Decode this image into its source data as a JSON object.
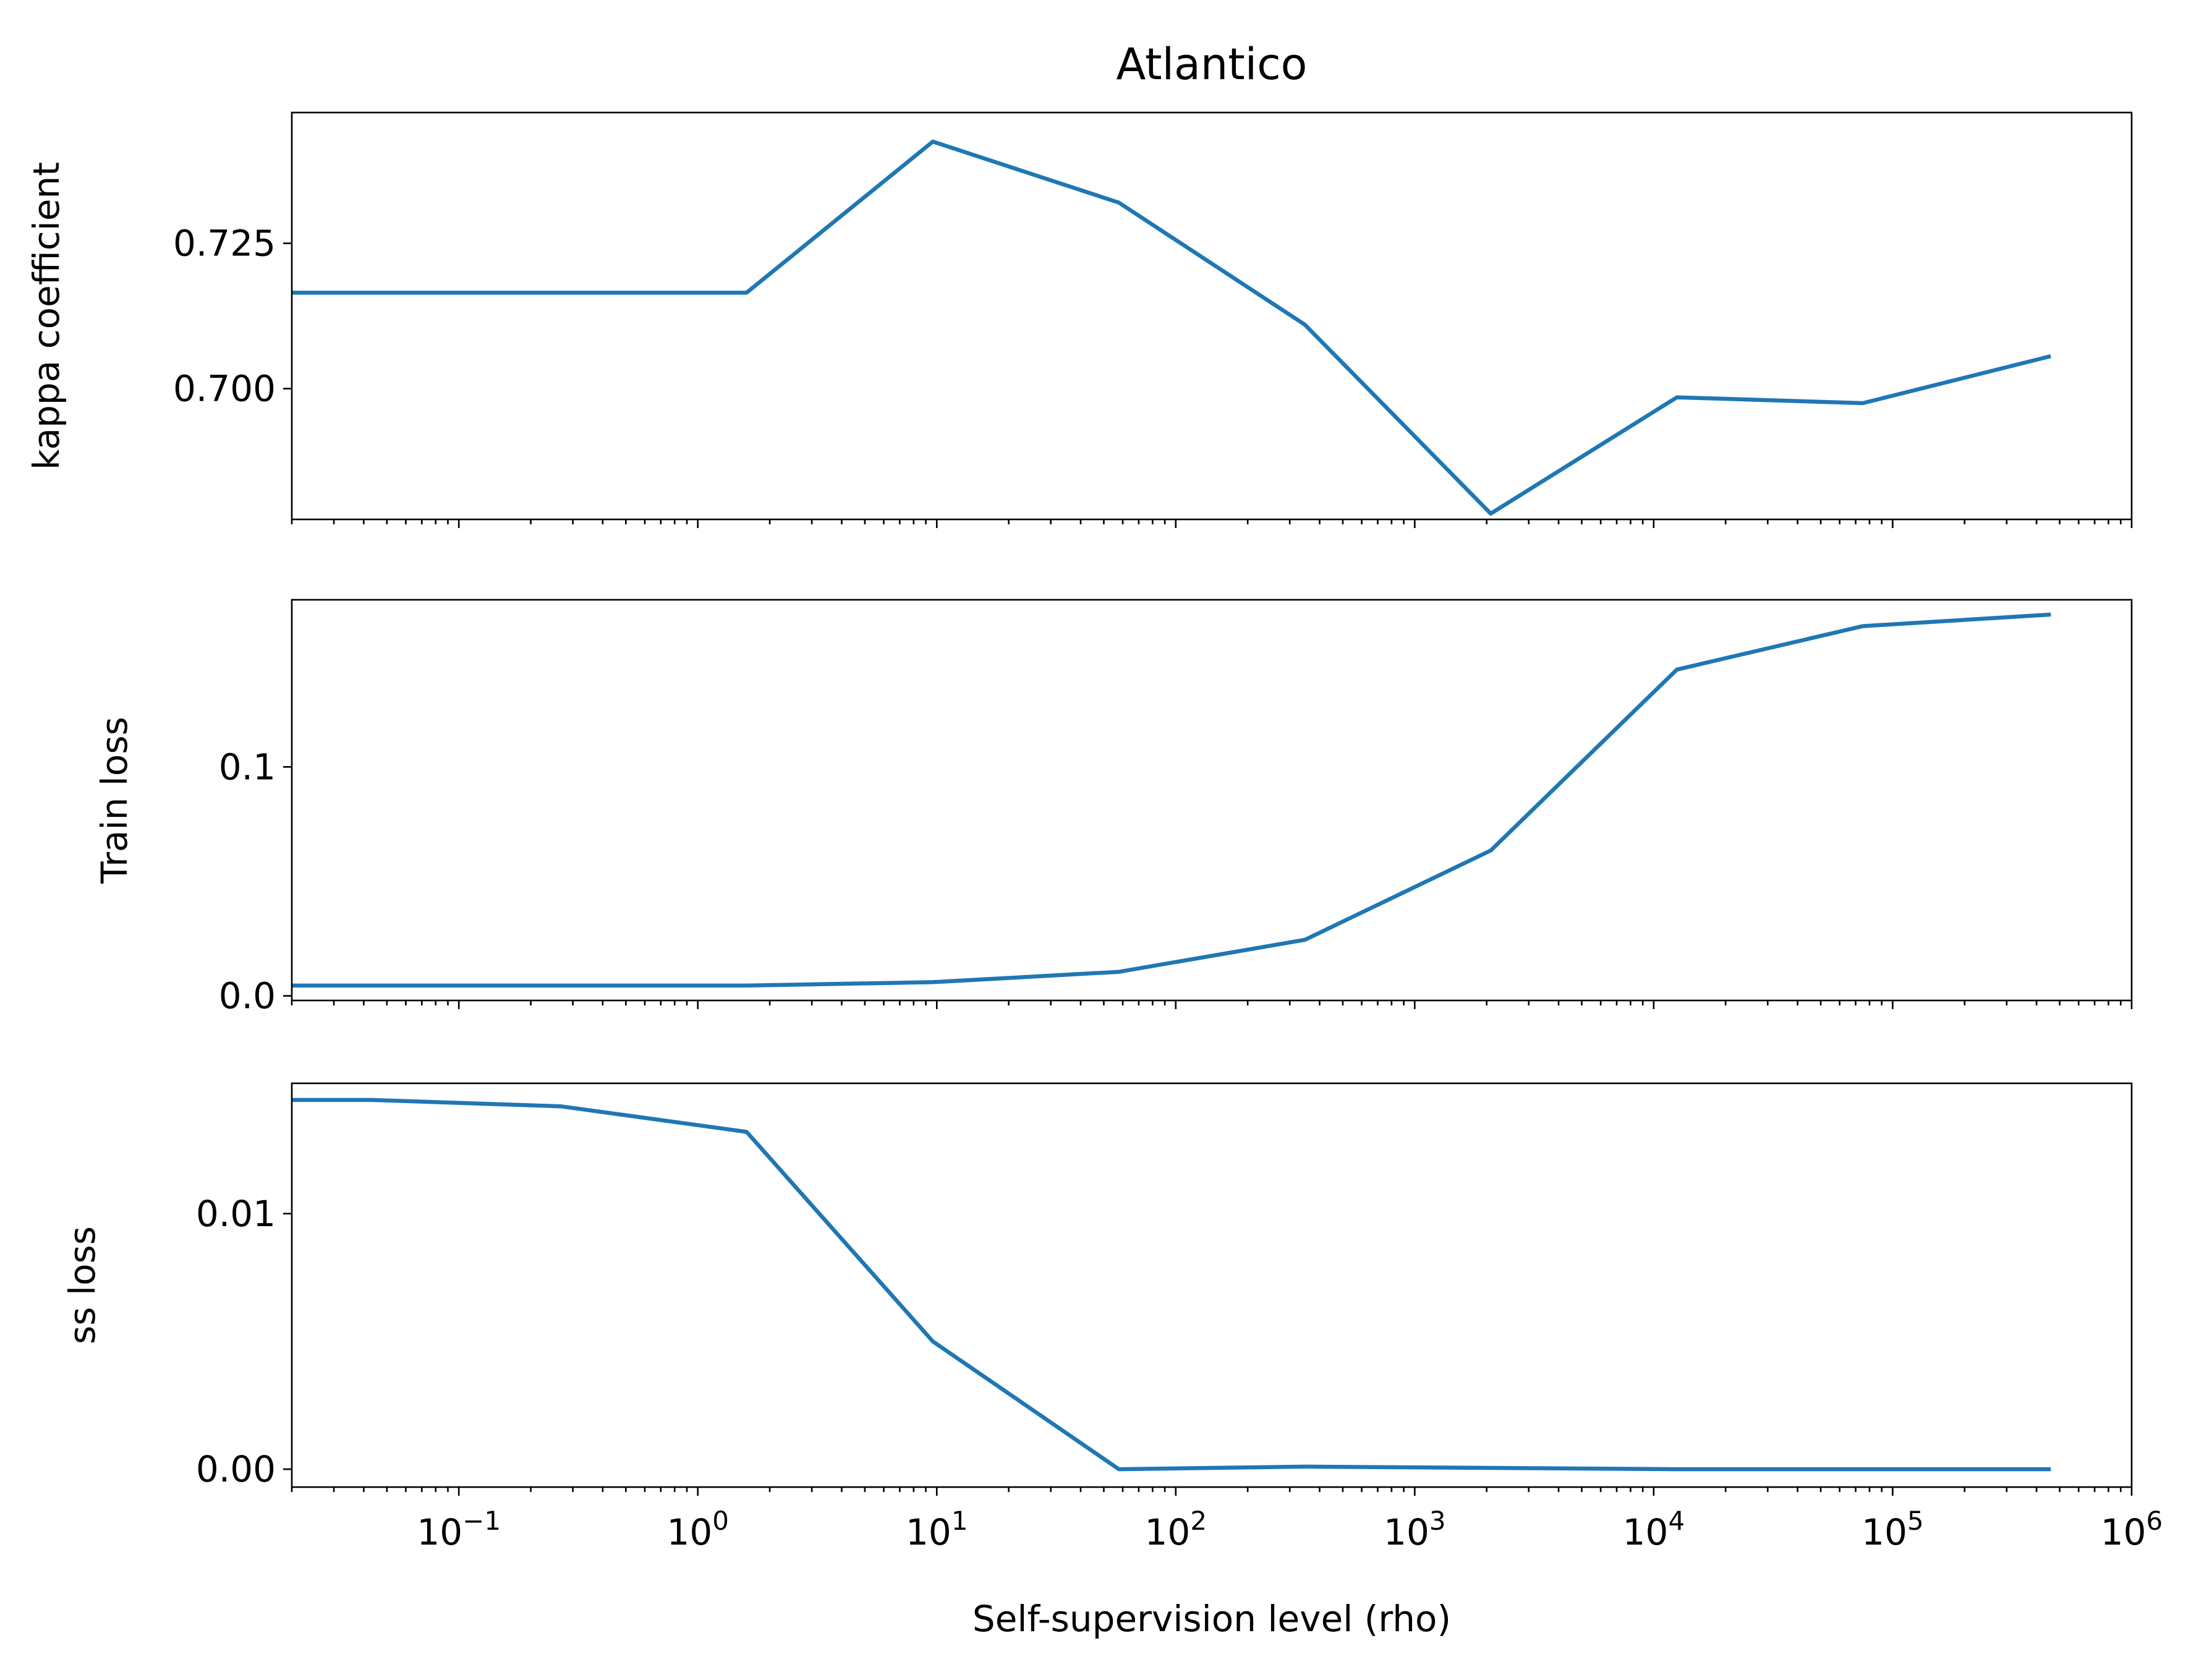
{
  "title": "Atlantico",
  "colors": {
    "series": "#1f77b4",
    "axes": "#000000",
    "background": "#ffffff"
  },
  "chart_data": [
    {
      "type": "line",
      "title": "Atlantico",
      "xlabel": "",
      "ylabel": "kappa coefficient",
      "xscale": "log",
      "xlim": [
        0.02,
        1000000
      ],
      "ylim": [
        0.6775,
        0.7475
      ],
      "yticks": [
        0.7,
        0.725
      ],
      "yticklabels": [
        "0.700",
        "0.725"
      ],
      "grid": false,
      "x": [
        0.0167,
        0.0432,
        0.267,
        1.6,
        9.63,
        57.8,
        347,
        2080,
        12500,
        75000,
        450000
      ],
      "series": [
        {
          "name": "",
          "values": [
            0.7165,
            0.7165,
            0.7165,
            0.7165,
            0.7425,
            0.732,
            0.711,
            0.6785,
            0.6985,
            0.6975,
            0.7055
          ]
        }
      ]
    },
    {
      "type": "line",
      "title": "",
      "xlabel": "",
      "ylabel": "Train loss",
      "xscale": "log",
      "xlim": [
        0.02,
        1000000
      ],
      "ylim": [
        -0.002,
        0.173
      ],
      "yticks": [
        0.0,
        0.1
      ],
      "yticklabels": [
        "0.0",
        "0.1"
      ],
      "grid": false,
      "x": [
        0.0167,
        0.0432,
        0.267,
        1.6,
        9.63,
        57.8,
        347,
        2080,
        12500,
        75000,
        450000
      ],
      "series": [
        {
          "name": "",
          "values": [
            0.0045,
            0.0045,
            0.0045,
            0.0045,
            0.006,
            0.0105,
            0.0245,
            0.0635,
            0.1425,
            0.1615,
            0.1665
          ]
        }
      ]
    },
    {
      "type": "line",
      "title": "",
      "xlabel": "Self-supervision level (rho)",
      "ylabel": "ss loss",
      "xscale": "log",
      "xlim": [
        0.02,
        1000000
      ],
      "ylim": [
        -0.0007,
        0.0151
      ],
      "yticks": [
        0.0,
        0.01
      ],
      "yticklabels": [
        "0.00",
        "0.01"
      ],
      "xticks": [
        0.1,
        1,
        10,
        100,
        1000,
        10000,
        100000,
        1000000
      ],
      "xtick_bases": [
        "10",
        "10",
        "10",
        "10",
        "10",
        "10",
        "10",
        "10"
      ],
      "xtick_exponents": [
        "−1",
        "0",
        "1",
        "2",
        "3",
        "4",
        "5",
        "6"
      ],
      "grid": false,
      "x": [
        0.0167,
        0.0432,
        0.267,
        1.6,
        9.63,
        57.8,
        347,
        2080,
        12500,
        75000,
        450000
      ],
      "series": [
        {
          "name": "",
          "values": [
            0.01445,
            0.01445,
            0.0142,
            0.0132,
            0.005,
            0.0,
            0.0001,
            5e-05,
            0.0,
            0.0,
            0.0
          ]
        }
      ]
    }
  ]
}
